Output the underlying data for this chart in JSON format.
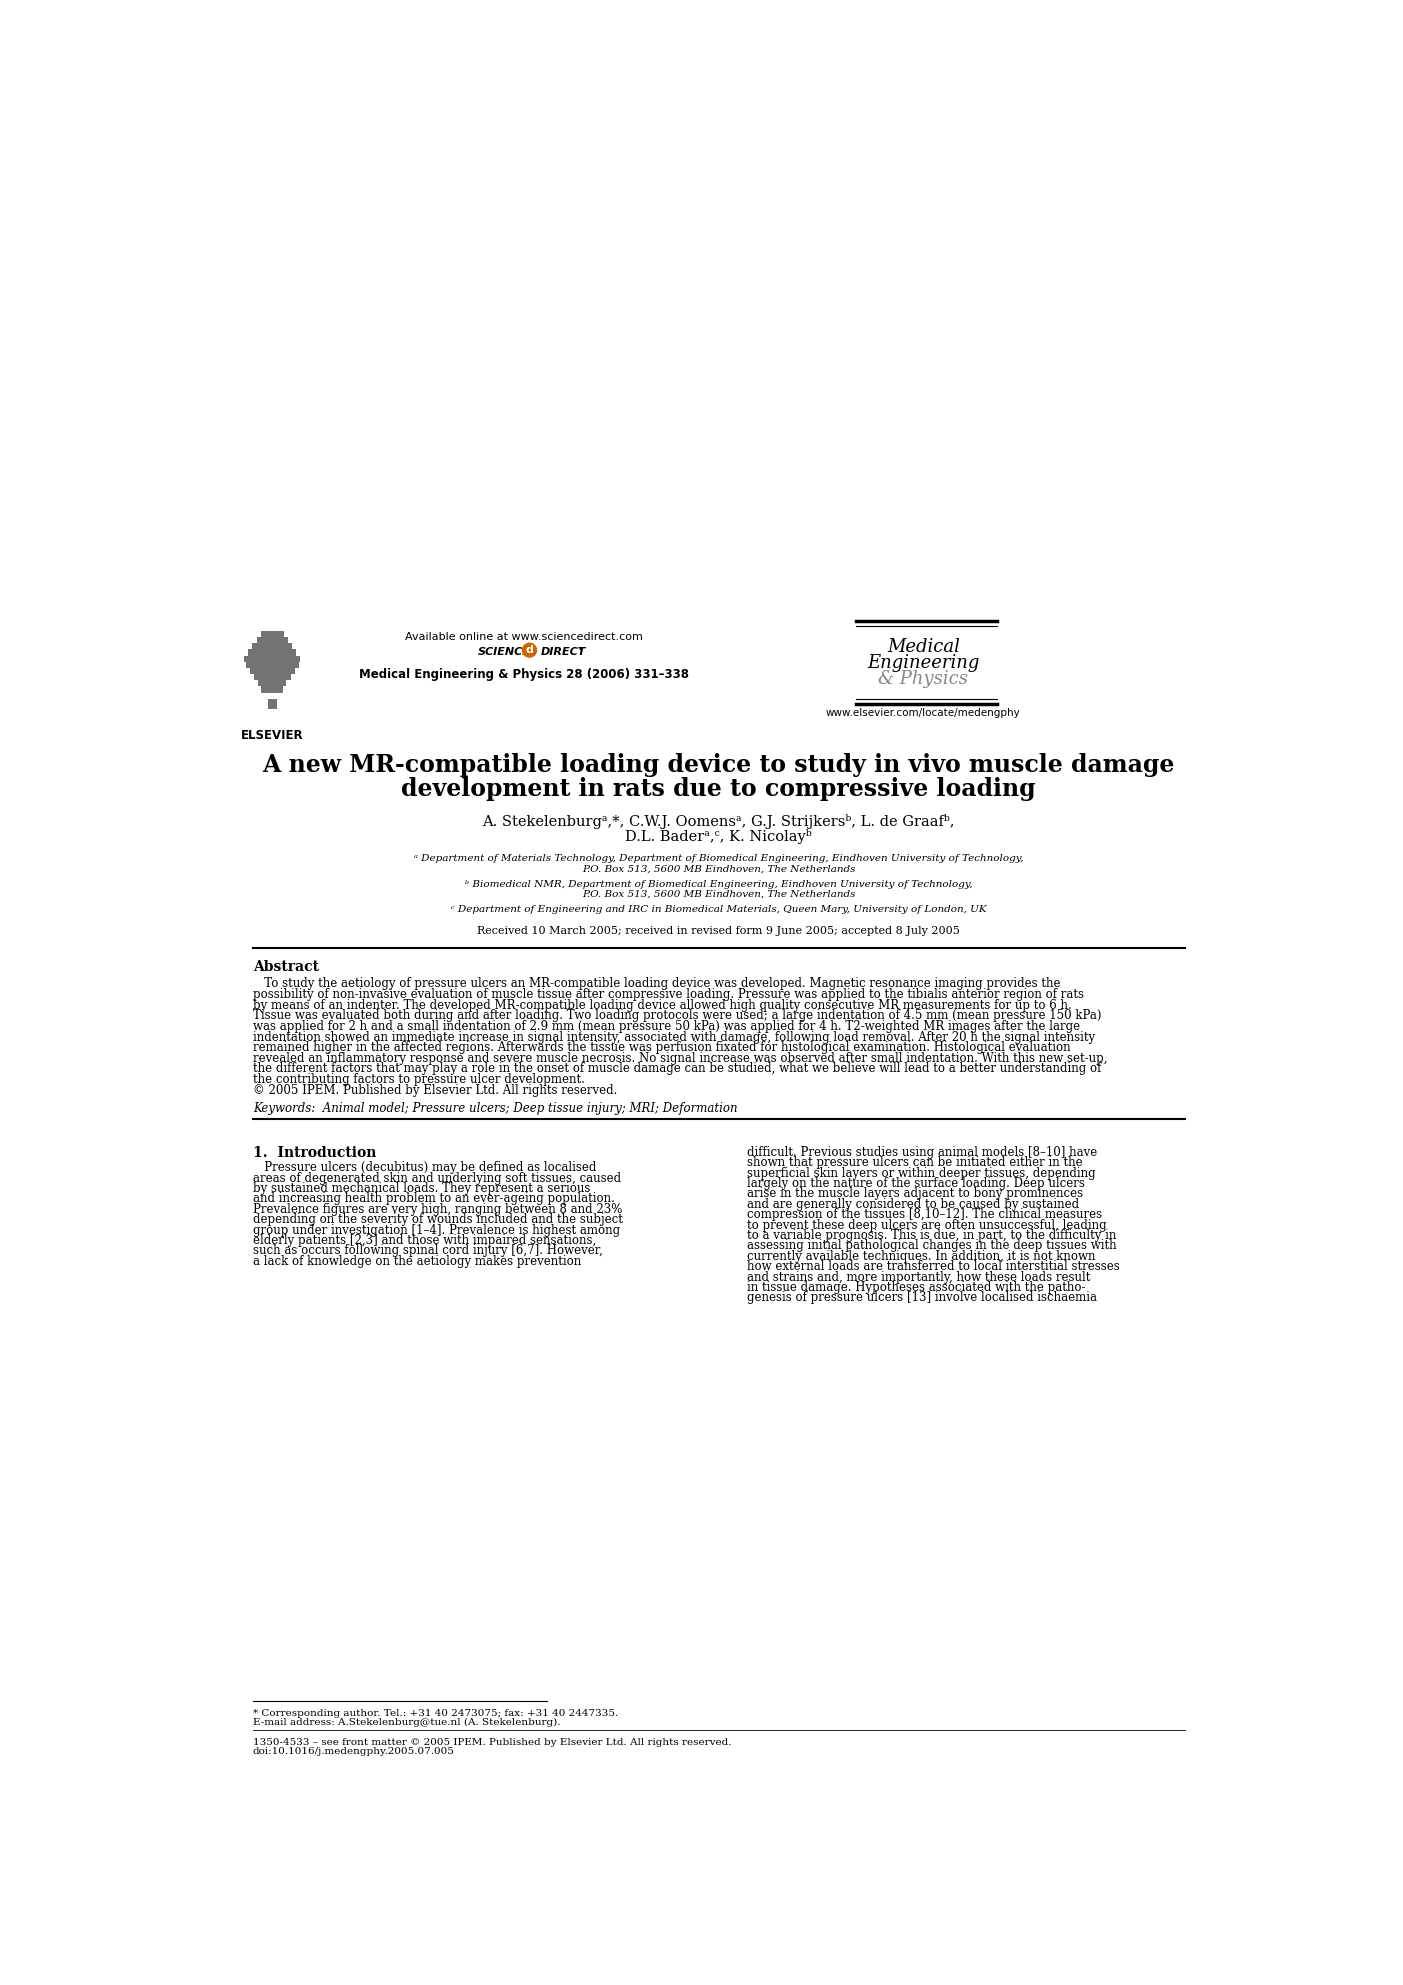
{
  "bg_color": "#ffffff",
  "header_available_online": "Available online at www.sciencedirect.com",
  "header_journal_line": "Medical Engineering & Physics 28 (2006) 331–338",
  "header_website": "www.elsevier.com/locate/medengphy",
  "header_med_eng_phys": [
    "Medical",
    "Engineering",
    "& Physics"
  ],
  "elsevier_text": "ELSEVIER",
  "title_line1": "A new MR-compatible loading device to study in vivo muscle damage",
  "title_line2": "development in rats due to compressive loading",
  "author_line1": "A. Stekelenburgᵃ,*, C.W.J. Oomensᵃ, G.J. Strijkersᵇ, L. de Graafᵇ,",
  "author_line2": "D.L. Baderᵃ,ᶜ, K. Nicolayᵇ",
  "affil_a_line1": "ᵃ Department of Materials Technology, Department of Biomedical Engineering, Eindhoven University of Technology,",
  "affil_a_line2": "P.O. Box 513, 5600 MB Eindhoven, The Netherlands",
  "affil_b_line1": "ᵇ Biomedical NMR, Department of Biomedical Engineering, Eindhoven University of Technology,",
  "affil_b_line2": "P.O. Box 513, 5600 MB Eindhoven, The Netherlands",
  "affil_c": "ᶜ Department of Engineering and IRC in Biomedical Materials, Queen Mary, University of London, UK",
  "received": "Received 10 March 2005; received in revised form 9 June 2005; accepted 8 July 2005",
  "abstract_title": "Abstract",
  "abstract_lines": [
    "   To study the aetiology of pressure ulcers an MR-compatible loading device was developed. Magnetic resonance imaging provides the",
    "possibility of non-invasive evaluation of muscle tissue after compressive loading. Pressure was applied to the tibialis anterior region of rats",
    "by means of an indenter. The developed MR-compatible loading device allowed high quality consecutive MR measurements for up to 6 h.",
    "Tissue was evaluated both during and after loading. Two loading protocols were used; a large indentation of 4.5 mm (mean pressure 150 kPa)",
    "was applied for 2 h and a small indentation of 2.9 mm (mean pressure 50 kPa) was applied for 4 h. T2-weighted MR images after the large",
    "indentation showed an immediate increase in signal intensity, associated with damage, following load removal. After 20 h the signal intensity",
    "remained higher in the affected regions. Afterwards the tissue was perfusion fixated for histological examination. Histological evaluation",
    "revealed an inflammatory response and severe muscle necrosis. No signal increase was observed after small indentation. With this new set-up,",
    "the different factors that may play a role in the onset of muscle damage can be studied, what we believe will lead to a better understanding of",
    "the contributing factors to pressure ulcer development.",
    "© 2005 IPEM. Published by Elsevier Ltd. All rights reserved."
  ],
  "keywords": "Keywords:  Animal model; Pressure ulcers; Deep tissue injury; MRI; Deformation",
  "section1_title": "1.  Introduction",
  "left_col_lines": [
    "   Pressure ulcers (decubitus) may be defined as localised",
    "areas of degenerated skin and underlying soft tissues, caused",
    "by sustained mechanical loads. They represent a serious",
    "and increasing health problem to an ever-ageing population.",
    "Prevalence figures are very high, ranging between 8 and 23%",
    "depending on the severity of wounds included and the subject",
    "group under investigation [1–4]. Prevalence is highest among",
    "elderly patients [2,3] and those with impaired sensations,",
    "such as occurs following spinal cord injury [6,7]. However,",
    "a lack of knowledge on the aetiology makes prevention"
  ],
  "right_col_lines": [
    "difficult. Previous studies using animal models [8–10] have",
    "shown that pressure ulcers can be initiated either in the",
    "superficial skin layers or within deeper tissues, depending",
    "largely on the nature of the surface loading. Deep ulcers",
    "arise in the muscle layers adjacent to bony prominences",
    "and are generally considered to be caused by sustained",
    "compression of the tissues [8,10–12]. The clinical measures",
    "to prevent these deep ulcers are often unsuccessful, leading",
    "to a variable prognosis. This is due, in part, to the difficulty in",
    "assessing initial pathological changes in the deep tissues with",
    "currently available techniques. In addition, it is not known",
    "how external loads are transferred to local interstitial stresses",
    "and strains and, more importantly, how these loads result",
    "in tissue damage. Hypotheses associated with the patho-",
    "genesis of pressure ulcers [13] involve localised ischaemia"
  ],
  "footnote1": "* Corresponding author. Tel.: +31 40 2473075; fax: +31 40 2447335.",
  "footnote2": "E-mail address: A.Stekelenburg@tue.nl (A. Stekelenburg).",
  "footnote3": "1350-4533 – see front matter © 2005 IPEM. Published by Elsevier Ltd. All rights reserved.",
  "footnote4": "doi:10.1016/j.medengphy.2005.07.005"
}
